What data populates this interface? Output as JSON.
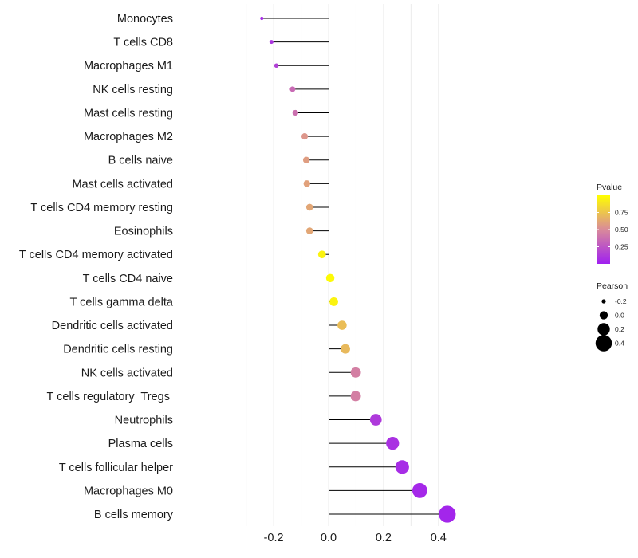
{
  "chart_data": {
    "type": "lollipop",
    "title": "",
    "xlabel": "",
    "ylabel": "",
    "xlim": [
      -0.25,
      0.45
    ],
    "xticks": [
      -0.2,
      0.0,
      0.2,
      0.4
    ],
    "xtick_labels": [
      "-0.2",
      "0.0",
      "0.2",
      "0.4"
    ],
    "grid": true,
    "categories": [
      "Monocytes",
      "T cells CD8",
      "Macrophages M1",
      "NK cells resting",
      "Mast cells resting",
      "Macrophages M2",
      "B cells naive",
      "Mast cells activated",
      "T cells CD4 memory resting",
      "Eosinophils",
      "T cells CD4 memory activated",
      "T cells CD4 naive",
      "T cells gamma delta",
      "Dendritic cells activated",
      "Dendritic cells resting",
      "NK cells activated",
      "T cells regulatory  Tregs ",
      "Neutrophils",
      "Plasma cells",
      "T cells follicular helper",
      "Macrophages M0",
      "B cells memory"
    ],
    "pearson": [
      -0.243,
      -0.208,
      -0.19,
      -0.131,
      -0.121,
      -0.087,
      -0.081,
      -0.079,
      -0.069,
      -0.069,
      -0.024,
      0.006,
      0.019,
      0.049,
      0.061,
      0.099,
      0.099,
      0.172,
      0.233,
      0.268,
      0.332,
      0.432
    ],
    "pvalue": [
      0.05,
      0.1,
      0.15,
      0.35,
      0.38,
      0.55,
      0.58,
      0.6,
      0.62,
      0.62,
      0.95,
      0.98,
      0.95,
      0.72,
      0.7,
      0.45,
      0.45,
      0.12,
      0.08,
      0.06,
      0.04,
      0.03
    ],
    "color_legend": {
      "title": "Pvalue",
      "low_color": "#a020f0",
      "mid_color": "#d98a9a",
      "high_color": "#ffff00",
      "range": [
        0.0,
        1.0
      ],
      "ticks": [
        0.25,
        0.5,
        0.75
      ],
      "tick_labels": [
        "0.25",
        "0.50",
        "0.75"
      ],
      "position": "right"
    },
    "size_legend": {
      "title": "Pearson",
      "values": [
        -0.2,
        0.0,
        0.2,
        0.4
      ],
      "labels": [
        "-0.2",
        "0.0",
        "0.2",
        "0.4"
      ],
      "position": "right"
    }
  }
}
